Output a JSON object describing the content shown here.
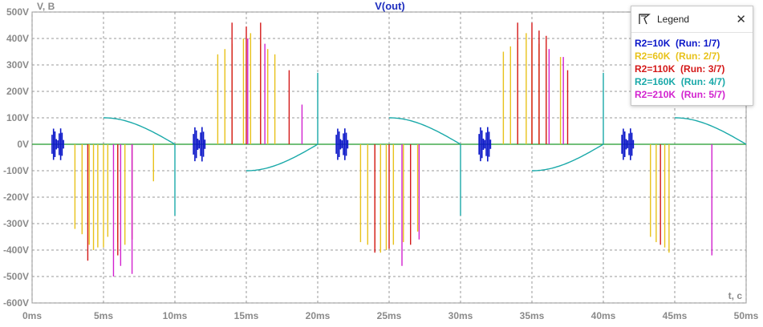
{
  "chart_data": {
    "type": "line",
    "title": "V(out)",
    "y_unit_label": "V, B",
    "x_unit_label": "t, c",
    "xlim": [
      0,
      50
    ],
    "ylim": [
      -600,
      500
    ],
    "x_ticks": [
      "0ms",
      "5ms",
      "10ms",
      "15ms",
      "20ms",
      "25ms",
      "30ms",
      "35ms",
      "40ms",
      "45ms",
      "50ms"
    ],
    "y_ticks": [
      "500V",
      "400V",
      "300V",
      "200V",
      "100V",
      "0V",
      "-100V",
      "-200V",
      "-300V",
      "-400V",
      "-500V",
      "-600V"
    ],
    "grid": true,
    "series": [
      {
        "name": "R2=10K",
        "run": "(Run: 1/7)",
        "color": "#0a16c8",
        "bursts": [
          {
            "x_start": 1.4,
            "x_end": 2.2,
            "amp": 60
          },
          {
            "x_start": 11.3,
            "x_end": 12.1,
            "amp": 65
          },
          {
            "x_start": 21.3,
            "x_end": 22.1,
            "amp": 60
          },
          {
            "x_start": 31.3,
            "x_end": 32.1,
            "amp": 65
          },
          {
            "x_start": 41.3,
            "x_end": 42.1,
            "amp": 60
          }
        ],
        "spikes": []
      },
      {
        "name": "R2=60K",
        "run": "(Run: 2/7)",
        "color": "#e8c21a",
        "bursts": [],
        "spikes": [
          [
            3.0,
            -320
          ],
          [
            3.5,
            -340
          ],
          [
            4.0,
            -380
          ],
          [
            4.3,
            -400
          ],
          [
            4.6,
            -390
          ],
          [
            5.0,
            -390
          ],
          [
            5.3,
            -350
          ],
          [
            6.0,
            -370
          ],
          [
            6.5,
            -380
          ],
          [
            8.5,
            -140
          ],
          [
            13.0,
            340
          ],
          [
            13.5,
            360
          ],
          [
            14.0,
            380
          ],
          [
            14.8,
            400
          ],
          [
            15.3,
            420
          ],
          [
            16.0,
            380
          ],
          [
            16.5,
            360
          ],
          [
            17.0,
            340
          ],
          [
            23.0,
            -370
          ],
          [
            23.5,
            -380
          ],
          [
            24.0,
            -390
          ],
          [
            24.4,
            -410
          ],
          [
            24.8,
            -400
          ],
          [
            25.3,
            -380
          ],
          [
            26.0,
            -370
          ],
          [
            27.0,
            -330
          ],
          [
            33.0,
            350
          ],
          [
            33.5,
            370
          ],
          [
            34.0,
            390
          ],
          [
            34.6,
            420
          ],
          [
            35.0,
            400
          ],
          [
            35.5,
            380
          ],
          [
            36.0,
            360
          ],
          [
            37.0,
            330
          ],
          [
            43.3,
            -350
          ],
          [
            43.7,
            -370
          ],
          [
            44.3,
            -390
          ],
          [
            44.6,
            -410
          ]
        ]
      },
      {
        "name": "R2=110K",
        "run": "(Run: 3/7)",
        "color": "#d41818",
        "bursts": [],
        "spikes": [
          [
            3.9,
            -440
          ],
          [
            6.0,
            -420
          ],
          [
            7.0,
            -360
          ],
          [
            14.0,
            460
          ],
          [
            15.0,
            445
          ],
          [
            16.0,
            460
          ],
          [
            18.0,
            280
          ],
          [
            24.0,
            -410
          ],
          [
            25.0,
            -395
          ],
          [
            26.5,
            -380
          ],
          [
            34.0,
            460
          ],
          [
            35.0,
            460
          ],
          [
            35.5,
            430
          ],
          [
            36.0,
            410
          ],
          [
            37.5,
            280
          ],
          [
            44.0,
            -380
          ]
        ]
      },
      {
        "name": "R2=160K",
        "run": "(Run: 4/7)",
        "color": "#1aa9a9",
        "bursts": [],
        "spikes": [],
        "envelope": {
          "half_period_ms": 10,
          "neg_start_ms": 5,
          "neg_levels": [
            -100,
            -270
          ],
          "pos_levels": [
            100,
            270
          ]
        }
      },
      {
        "name": "R2=210K",
        "run": "(Run: 5/7)",
        "color": "#d222cf",
        "bursts": [],
        "spikes": [
          [
            5.7,
            -500
          ],
          [
            6.2,
            -460
          ],
          [
            7.0,
            -490
          ],
          [
            15.1,
            400
          ],
          [
            16.3,
            380
          ],
          [
            18.9,
            150
          ],
          [
            25.9,
            -460
          ],
          [
            27.1,
            -360
          ],
          [
            36.2,
            360
          ],
          [
            37.2,
            330
          ],
          [
            47.6,
            -420
          ]
        ]
      }
    ],
    "legend": {
      "title": "Legend",
      "placement": "top-right",
      "items": [
        {
          "text": "R2=10K",
          "run": "(Run: 1/7)",
          "color": "#0a16c8"
        },
        {
          "text": "R2=60K",
          "run": "(Run: 2/7)",
          "color": "#e8c21a"
        },
        {
          "text": "R2=110K",
          "run": "(Run: 3/7)",
          "color": "#d41818"
        },
        {
          "text": "R2=160K",
          "run": "(Run: 4/7)",
          "color": "#1aa9a9"
        },
        {
          "text": "R2=210K",
          "run": "(Run: 5/7)",
          "color": "#d222cf"
        }
      ]
    },
    "baseline_color": "#1f9a2a",
    "envelope_color": "#1aa9a9"
  }
}
